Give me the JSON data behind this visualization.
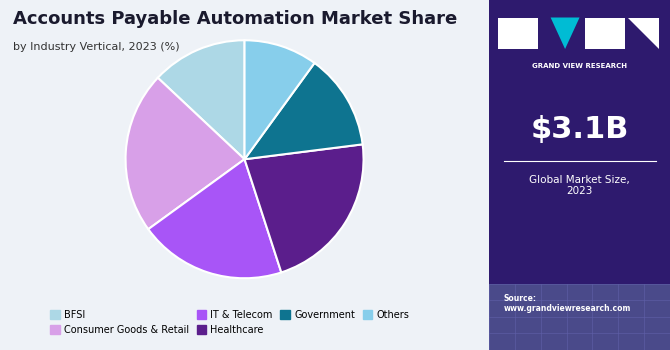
{
  "title": "Accounts Payable Automation Market Share",
  "subtitle": "by Industry Vertical, 2023 (%)",
  "labels": [
    "BFSI",
    "Consumer Goods & Retail",
    "IT & Telecom",
    "Healthcare",
    "Government",
    "Others"
  ],
  "sizes": [
    13,
    22,
    20,
    22,
    13,
    10
  ],
  "colors": [
    "#add8e6",
    "#d8a0e8",
    "#a855f7",
    "#5b1e8c",
    "#0e7490",
    "#87ceeb"
  ],
  "startangle": 90,
  "right_bg_color": "#2e1a6e",
  "market_size_text": "$3.1B",
  "market_size_label": "Global Market Size,\n2023",
  "source_text": "Source:\nwww.grandviewresearch.com",
  "left_bg_color": "#eef2f7",
  "legend_colors": [
    "#add8e6",
    "#d8a0e8",
    "#a855f7",
    "#5b1e8c",
    "#0e7490",
    "#87ceeb"
  ],
  "logo_text": "GRAND VIEW RESEARCH",
  "grid_bg_color": "#4a4a8a"
}
